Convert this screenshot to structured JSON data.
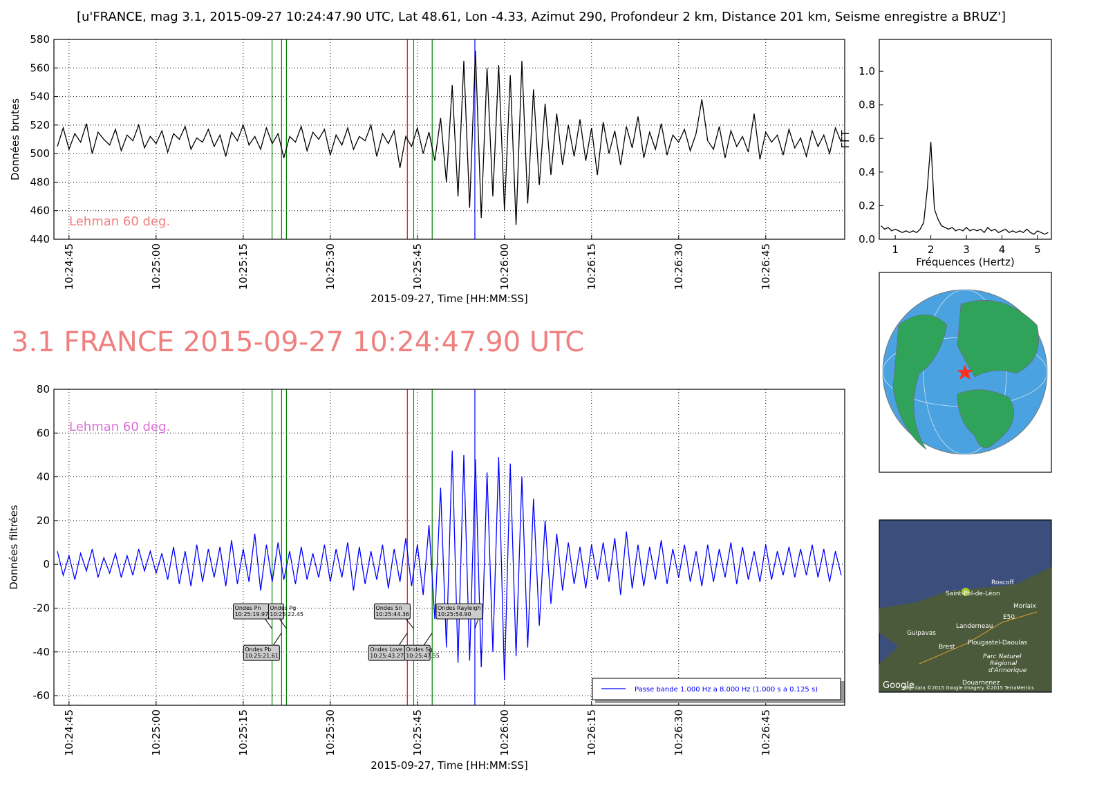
{
  "chart_data": [
    {
      "type": "line",
      "title": "[u'FRANCE, mag 3.1, 2015-09-27 10:24:47.90 UTC, Lat 48.61, Lon -4.33, Azimut 290, Profondeur 2 km, Distance   201 km, Seisme enregistre a BRUZ']",
      "ylabel": "Données brutes",
      "xlabel": "2015-09-27, Time [HH:MM:SS]",
      "annotation": "Lehman 60 deg.",
      "annotation_color": "#f08080",
      "xlim": [
        "10:24:42.4",
        "10:26:58.6"
      ],
      "xticks": [
        "10:24:45",
        "10:25:00",
        "10:25:15",
        "10:25:30",
        "10:25:45",
        "10:26:00",
        "10:26:15",
        "10:26:30",
        "10:26:45"
      ],
      "ylim": [
        440,
        580
      ],
      "yticks": [
        440,
        460,
        480,
        500,
        520,
        540,
        560,
        580
      ],
      "grid": true,
      "markers": [
        {
          "time": "10:25:19.97",
          "color": "green"
        },
        {
          "time": "10:25:21.61",
          "color": "green"
        },
        {
          "time": "10:25:22.45",
          "color": "green"
        },
        {
          "time": "10:25:43.27",
          "color": "red"
        },
        {
          "time": "10:25:44.36",
          "color": "#2f6f2f"
        },
        {
          "time": "10:25:47.55",
          "color": "green"
        },
        {
          "time": "10:25:54.90",
          "color": "blue"
        }
      ],
      "x": [
        "10:24:43",
        "10:24:44",
        "10:24:45",
        "10:24:46",
        "10:24:47",
        "10:24:48",
        "10:24:49",
        "10:24:50",
        "10:24:51",
        "10:24:52",
        "10:24:53",
        "10:24:54",
        "10:24:55",
        "10:24:56",
        "10:24:57",
        "10:24:58",
        "10:24:59",
        "10:25:00",
        "10:25:01",
        "10:25:02",
        "10:25:03",
        "10:25:04",
        "10:25:05",
        "10:25:06",
        "10:25:07",
        "10:25:08",
        "10:25:09",
        "10:25:10",
        "10:25:11",
        "10:25:12",
        "10:25:13",
        "10:25:14",
        "10:25:15",
        "10:25:16",
        "10:25:17",
        "10:25:18",
        "10:25:19",
        "10:25:20",
        "10:25:21",
        "10:25:22",
        "10:25:23",
        "10:25:24",
        "10:25:25",
        "10:25:26",
        "10:25:27",
        "10:25:28",
        "10:25:29",
        "10:25:30",
        "10:25:31",
        "10:25:32",
        "10:25:33",
        "10:25:34",
        "10:25:35",
        "10:25:36",
        "10:25:37",
        "10:25:38",
        "10:25:39",
        "10:25:40",
        "10:25:41",
        "10:25:42",
        "10:25:43",
        "10:25:44",
        "10:25:45",
        "10:25:46",
        "10:25:47",
        "10:25:48",
        "10:25:49",
        "10:25:50",
        "10:25:51",
        "10:25:52",
        "10:25:53",
        "10:25:54",
        "10:25:55",
        "10:25:56",
        "10:25:57",
        "10:25:58",
        "10:25:59",
        "10:26:00",
        "10:26:01",
        "10:26:02",
        "10:26:03",
        "10:26:04",
        "10:26:05",
        "10:26:06",
        "10:26:07",
        "10:26:08",
        "10:26:09",
        "10:26:10",
        "10:26:11",
        "10:26:12",
        "10:26:13",
        "10:26:14",
        "10:26:15",
        "10:26:16",
        "10:26:17",
        "10:26:18",
        "10:26:19",
        "10:26:20",
        "10:26:21",
        "10:26:22",
        "10:26:23",
        "10:26:24",
        "10:26:25",
        "10:26:26",
        "10:26:27",
        "10:26:28",
        "10:26:29",
        "10:26:30",
        "10:26:31",
        "10:26:32",
        "10:26:33",
        "10:26:34",
        "10:26:35",
        "10:26:36",
        "10:26:37",
        "10:26:38",
        "10:26:39",
        "10:26:40",
        "10:26:41",
        "10:26:42",
        "10:26:43",
        "10:26:44",
        "10:26:45",
        "10:26:46",
        "10:26:47",
        "10:26:48",
        "10:26:49",
        "10:26:50",
        "10:26:51",
        "10:26:52",
        "10:26:53",
        "10:26:54",
        "10:26:55",
        "10:26:56",
        "10:26:57",
        "10:26:58"
      ],
      "series": [
        {
          "color": "#000000",
          "values": [
            505,
            518,
            503,
            514,
            508,
            521,
            500,
            515,
            510,
            506,
            517,
            502,
            513,
            509,
            520,
            504,
            512,
            507,
            516,
            501,
            514,
            510,
            519,
            503,
            511,
            508,
            517,
            505,
            513,
            498,
            515,
            509,
            520,
            506,
            512,
            503,
            518,
            507,
            514,
            497,
            512,
            508,
            519,
            502,
            515,
            510,
            517,
            499,
            513,
            506,
            518,
            503,
            512,
            509,
            520,
            498,
            514,
            507,
            516,
            490,
            512,
            505,
            518,
            500,
            515,
            495,
            525,
            480,
            548,
            470,
            565,
            462,
            572,
            455,
            560,
            470,
            562,
            460,
            555,
            450,
            565,
            465,
            545,
            478,
            535,
            485,
            528,
            492,
            520,
            498,
            524,
            495,
            518,
            485,
            522,
            500,
            516,
            492,
            519,
            504,
            526,
            497,
            515,
            503,
            521,
            499,
            513,
            508,
            517,
            502,
            514,
            538,
            509,
            503,
            519,
            497,
            516,
            505,
            512,
            501,
            528,
            496,
            515,
            508,
            513,
            499,
            517,
            504,
            511,
            498,
            516,
            505,
            513,
            500,
            518,
            508
          ]
        }
      ]
    },
    {
      "type": "line",
      "title": "3.1 FRANCE 2015-09-27 10:24:47.90 UTC",
      "ylabel": "Données filtrées",
      "xlabel": "2015-09-27, Time [HH:MM:SS]",
      "annotation": "Lehman 60 deg.",
      "annotation_color": "#da70d6",
      "xlim": [
        "10:24:42.4",
        "10:26:58.6"
      ],
      "xticks": [
        "10:24:45",
        "10:25:00",
        "10:25:15",
        "10:25:30",
        "10:25:45",
        "10:26:00",
        "10:26:15",
        "10:26:30",
        "10:26:45"
      ],
      "ylim": [
        -64.4,
        80
      ],
      "yticks": [
        -60,
        -40,
        -20,
        0,
        20,
        40,
        60,
        80
      ],
      "grid": true,
      "legend": "lower right",
      "markers": [
        {
          "name": "Ondes Pn",
          "time": "10:25:19.97",
          "color": "green"
        },
        {
          "name": "Ondes Pb",
          "time": "10:25:21.61",
          "color": "green"
        },
        {
          "name": "Ondes Pg",
          "time": "10:25:22.45",
          "color": "green"
        },
        {
          "name": "Ondes Love",
          "time": "10:25:43.27",
          "color": "red"
        },
        {
          "name": "Ondes Sn",
          "time": "10:25:44.36",
          "color": "#2f6f2f"
        },
        {
          "name": "Ondes Sg",
          "time": "10:25:47.55",
          "color": "green"
        },
        {
          "name": "Ondes Rayleigh",
          "time": "10:25:54.90",
          "color": "blue"
        }
      ],
      "x": [
        "10:24:43",
        "10:24:44",
        "10:24:45",
        "10:24:46",
        "10:24:47",
        "10:24:48",
        "10:24:49",
        "10:24:50",
        "10:24:51",
        "10:24:52",
        "10:24:53",
        "10:24:54",
        "10:24:55",
        "10:24:56",
        "10:24:57",
        "10:24:58",
        "10:24:59",
        "10:25:00",
        "10:25:01",
        "10:25:02",
        "10:25:03",
        "10:25:04",
        "10:25:05",
        "10:25:06",
        "10:25:07",
        "10:25:08",
        "10:25:09",
        "10:25:10",
        "10:25:11",
        "10:25:12",
        "10:25:13",
        "10:25:14",
        "10:25:15",
        "10:25:16",
        "10:25:17",
        "10:25:18",
        "10:25:19",
        "10:25:20",
        "10:25:21",
        "10:25:22",
        "10:25:23",
        "10:25:24",
        "10:25:25",
        "10:25:26",
        "10:25:27",
        "10:25:28",
        "10:25:29",
        "10:25:30",
        "10:25:31",
        "10:25:32",
        "10:25:33",
        "10:25:34",
        "10:25:35",
        "10:25:36",
        "10:25:37",
        "10:25:38",
        "10:25:39",
        "10:25:40",
        "10:25:41",
        "10:25:42",
        "10:25:43",
        "10:25:44",
        "10:25:45",
        "10:25:46",
        "10:25:47",
        "10:25:48",
        "10:25:49",
        "10:25:50",
        "10:25:51",
        "10:25:52",
        "10:25:53",
        "10:25:54",
        "10:25:55",
        "10:25:56",
        "10:25:57",
        "10:25:58",
        "10:25:59",
        "10:26:00",
        "10:26:01",
        "10:26:02",
        "10:26:03",
        "10:26:04",
        "10:26:05",
        "10:26:06",
        "10:26:07",
        "10:26:08",
        "10:26:09",
        "10:26:10",
        "10:26:11",
        "10:26:12",
        "10:26:13",
        "10:26:14",
        "10:26:15",
        "10:26:16",
        "10:26:17",
        "10:26:18",
        "10:26:19",
        "10:26:20",
        "10:26:21",
        "10:26:22",
        "10:26:23",
        "10:26:24",
        "10:26:25",
        "10:26:26",
        "10:26:27",
        "10:26:28",
        "10:26:29",
        "10:26:30",
        "10:26:31",
        "10:26:32",
        "10:26:33",
        "10:26:34",
        "10:26:35",
        "10:26:36",
        "10:26:37",
        "10:26:38",
        "10:26:39",
        "10:26:40",
        "10:26:41",
        "10:26:42",
        "10:26:43",
        "10:26:44",
        "10:26:45",
        "10:26:46",
        "10:26:47",
        "10:26:48",
        "10:26:49",
        "10:26:50",
        "10:26:51",
        "10:26:52",
        "10:26:53",
        "10:26:54",
        "10:26:55",
        "10:26:56",
        "10:26:57",
        "10:26:58"
      ],
      "series": [
        {
          "name": "Passe bande 1.000 Hz a 8.000 Hz (1.000 s a 0.125 s)",
          "color": "#0000ff",
          "values": [
            6,
            -5,
            4,
            -7,
            5,
            -3,
            7,
            -6,
            3,
            -4,
            5,
            -6,
            4,
            -5,
            7,
            -3,
            6,
            -4,
            5,
            -7,
            8,
            -9,
            6,
            -10,
            9,
            -8,
            7,
            -6,
            8,
            -10,
            11,
            -9,
            7,
            -8,
            14,
            -12,
            9,
            -8,
            10,
            -7,
            6,
            -9,
            8,
            -7,
            5,
            -6,
            9,
            -8,
            7,
            -6,
            10,
            -12,
            8,
            -9,
            6,
            -7,
            9,
            -11,
            7,
            -8,
            12,
            -10,
            9,
            -14,
            18,
            -25,
            35,
            -38,
            52,
            -45,
            50,
            -44,
            48,
            -47,
            42,
            -40,
            49,
            -53,
            46,
            -42,
            40,
            -38,
            30,
            -28,
            20,
            -18,
            14,
            -12,
            10,
            -9,
            8,
            -11,
            9,
            -7,
            10,
            -8,
            12,
            -14,
            15,
            -11,
            9,
            -10,
            8,
            -7,
            11,
            -9,
            7,
            -6,
            9,
            -8,
            6,
            -10,
            9,
            -8,
            7,
            -6,
            10,
            -9,
            8,
            -7,
            6,
            -8,
            9,
            -7,
            6,
            -5,
            8,
            -6,
            7,
            -5,
            9,
            -6,
            7,
            -8,
            6,
            -5
          ]
        }
      ]
    },
    {
      "type": "line",
      "xlabel": "Fréquences (Hertz)",
      "ylabel": "FFT",
      "xlim": [
        0.55,
        5.39
      ],
      "xticks": [
        1,
        2,
        3,
        4,
        5
      ],
      "ylim": [
        0,
        1.19
      ],
      "yticks": [
        {
          "value": 0,
          "label": "0.0"
        },
        0.2,
        0.4,
        0.6,
        0.8,
        {
          "value": 1,
          "label": "1.0"
        }
      ],
      "grid": false,
      "x": [
        0.6,
        0.7,
        0.8,
        0.9,
        1.0,
        1.1,
        1.2,
        1.3,
        1.4,
        1.5,
        1.6,
        1.7,
        1.8,
        1.9,
        2.0,
        2.1,
        2.2,
        2.3,
        2.4,
        2.5,
        2.6,
        2.7,
        2.8,
        2.9,
        3.0,
        3.1,
        3.2,
        3.3,
        3.4,
        3.5,
        3.6,
        3.7,
        3.8,
        3.9,
        4.0,
        4.1,
        4.2,
        4.3,
        4.4,
        4.5,
        4.6,
        4.7,
        4.8,
        4.9,
        5.0,
        5.1,
        5.2,
        5.3
      ],
      "series": [
        {
          "color": "#000000",
          "values": [
            0.08,
            0.06,
            0.07,
            0.05,
            0.06,
            0.05,
            0.04,
            0.05,
            0.04,
            0.05,
            0.04,
            0.06,
            0.1,
            0.3,
            0.58,
            0.18,
            0.12,
            0.08,
            0.07,
            0.06,
            0.07,
            0.05,
            0.06,
            0.05,
            0.07,
            0.05,
            0.06,
            0.05,
            0.06,
            0.04,
            0.07,
            0.05,
            0.06,
            0.04,
            0.05,
            0.06,
            0.04,
            0.05,
            0.04,
            0.05,
            0.04,
            0.06,
            0.04,
            0.03,
            0.05,
            0.04,
            0.03,
            0.04
          ]
        }
      ]
    }
  ],
  "map_labels": [
    "Roscoff",
    "Saint-Pol-de-Léon",
    "Morlaix",
    "Landerneau",
    "Guipavas",
    "Brest",
    "Plougastel-Daoulas",
    "Parc Naturel",
    "Régional",
    "d'Armorique",
    "Douarnenez",
    "E50",
    "Google",
    "Map data ©2015 Google  Imagery ©2015 TerraMetrics"
  ]
}
